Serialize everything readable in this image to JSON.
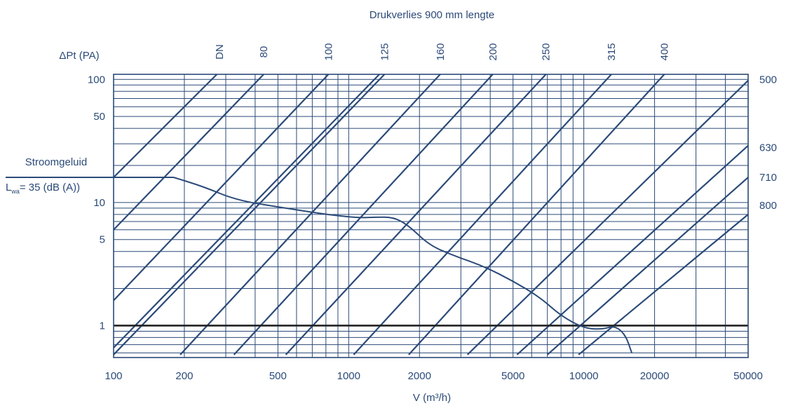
{
  "chart_data": {
    "type": "line",
    "title": "Drukverlies 900 mm lengte",
    "xlabel": "V (m³/h)",
    "ylabel": "ΔPt (PA)",
    "x_scale": "log",
    "y_scale": "log",
    "xlim": [
      100,
      50000
    ],
    "ylim": [
      0.55,
      110
    ],
    "x_ticks": [
      100,
      200,
      500,
      1000,
      2000,
      5000,
      10000,
      20000,
      50000
    ],
    "x_tick_labels": [
      "100",
      "200",
      "500",
      "1000",
      "2000",
      "5000",
      "10000",
      "20000",
      "50000"
    ],
    "y_ticks": [
      1,
      5,
      10,
      50,
      100
    ],
    "y_tick_labels": [
      "1",
      "5",
      "10",
      "50",
      "100"
    ],
    "grid": true,
    "dn_label": "DN",
    "duct_series": [
      {
        "name": "80",
        "points": [
          [
            100,
            6.0
          ],
          [
            435,
            110
          ]
        ]
      },
      {
        "name": "100",
        "points": [
          [
            100,
            1.6
          ],
          [
            820,
            110
          ]
        ]
      },
      {
        "name": "125",
        "points": [
          [
            100,
            0.58
          ],
          [
            1420,
            110
          ]
        ]
      },
      {
        "name": "160",
        "points": [
          [
            192,
            0.58
          ],
          [
            2450,
            110
          ]
        ]
      },
      {
        "name": "200",
        "points": [
          [
            325,
            0.58
          ],
          [
            4100,
            110
          ]
        ]
      },
      {
        "name": "250",
        "points": [
          [
            540,
            0.58
          ],
          [
            6900,
            110
          ]
        ]
      },
      {
        "name": "315",
        "points": [
          [
            1050,
            0.58
          ],
          [
            13100,
            110
          ]
        ]
      },
      {
        "name": "400",
        "points": [
          [
            1800,
            0.58
          ],
          [
            22000,
            110
          ]
        ]
      },
      {
        "name": "500",
        "points": [
          [
            3200,
            0.58
          ],
          [
            50000,
            98
          ]
        ]
      },
      {
        "name": "630",
        "points": [
          [
            5200,
            0.58
          ],
          [
            50000,
            29
          ]
        ]
      },
      {
        "name": "710",
        "points": [
          [
            7000,
            0.58
          ],
          [
            50000,
            16
          ]
        ]
      },
      {
        "name": "800",
        "points": [
          [
            9500,
            0.58
          ],
          [
            50000,
            8.0
          ]
        ]
      }
    ],
    "extra_diagonals": [
      {
        "points": [
          [
            100,
            16.0
          ],
          [
            275,
            110
          ]
        ]
      },
      {
        "points": [
          [
            100,
            0.66
          ],
          [
            1350,
            110
          ]
        ]
      }
    ],
    "right_labels": [
      {
        "text": "500",
        "y": 100
      },
      {
        "text": "630",
        "y": 28
      },
      {
        "text": "710",
        "y": 16
      },
      {
        "text": "800",
        "y": 9.5
      }
    ],
    "reference_line": {
      "y": 1
    },
    "sound_curve": {
      "label": "Stroomgeluid",
      "sublabel_main": "L",
      "sublabel_sub": "wa",
      "sublabel_rest": "= 35 (dB (A))",
      "level_y": 16,
      "points": [
        [
          180,
          16
        ],
        [
          240,
          13.5
        ],
        [
          330,
          10.5
        ],
        [
          500,
          9.2
        ],
        [
          800,
          8.0
        ],
        [
          1100,
          7.5
        ],
        [
          1300,
          7.6
        ],
        [
          1550,
          7.6
        ],
        [
          1800,
          6.5
        ],
        [
          2200,
          4.5
        ],
        [
          2800,
          3.7
        ],
        [
          3800,
          3.0
        ],
        [
          5000,
          2.3
        ],
        [
          6500,
          1.7
        ],
        [
          8000,
          1.2
        ],
        [
          10000,
          0.95
        ],
        [
          12000,
          0.93
        ],
        [
          13500,
          1.0
        ],
        [
          15000,
          0.85
        ],
        [
          16000,
          0.6
        ]
      ]
    }
  }
}
